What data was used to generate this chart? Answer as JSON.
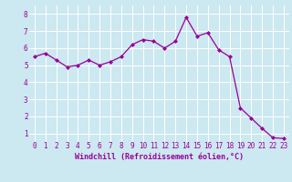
{
  "x": [
    0,
    1,
    2,
    3,
    4,
    5,
    6,
    7,
    8,
    9,
    10,
    11,
    12,
    13,
    14,
    15,
    16,
    17,
    18,
    19,
    20,
    21,
    22,
    23
  ],
  "y": [
    5.5,
    5.7,
    5.3,
    4.9,
    5.0,
    5.3,
    5.0,
    5.2,
    5.5,
    6.2,
    6.5,
    6.4,
    6.0,
    6.4,
    7.8,
    6.7,
    6.9,
    5.9,
    5.5,
    2.5,
    1.9,
    1.3,
    0.75,
    0.7
  ],
  "line_color": "#990099",
  "marker": "D",
  "marker_size": 2.0,
  "linewidth": 0.9,
  "xlabel": "Windchill (Refroidissement éolien,°C)",
  "xlabel_fontsize": 6,
  "ylabel_ticks": [
    1,
    2,
    3,
    4,
    5,
    6,
    7,
    8
  ],
  "xlim": [
    -0.5,
    23.5
  ],
  "ylim": [
    0.5,
    8.5
  ],
  "background_color": "#cce8f0",
  "grid_color": "#ffffff",
  "tick_label_fontsize": 5.5,
  "xtick_labels": [
    "0",
    "1",
    "2",
    "3",
    "4",
    "5",
    "6",
    "7",
    "8",
    "9",
    "10",
    "11",
    "12",
    "13",
    "14",
    "15",
    "16",
    "17",
    "18",
    "19",
    "20",
    "21",
    "22",
    "23"
  ]
}
